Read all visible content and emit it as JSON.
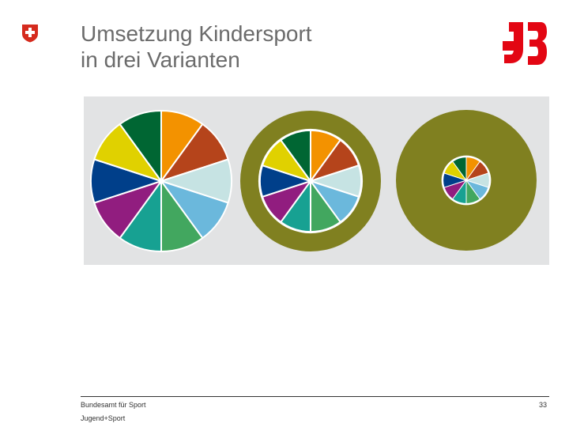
{
  "slide": {
    "title_lines": [
      "Umsetzung Kindersport",
      "in drei Varianten"
    ],
    "footer": {
      "organization": "Bundesamt für Sport",
      "program": "Jugend+Sport",
      "page_number": "33"
    }
  },
  "logos": {
    "left": "swiss-federal-coat-of-arms",
    "right": "js-jugend-sport-logo"
  },
  "graphic": {
    "background_color": "#e2e3e4",
    "ring_color": "#808020",
    "segment_colors": [
      "#f39200",
      "#b5441b",
      "#c6e3e3",
      "#6bb8dc",
      "#42a75f",
      "#17a192",
      "#911d7f",
      "#003f8a",
      "#e0d100",
      "#006633"
    ],
    "variants": [
      {
        "name": "variant-1",
        "inner_fraction": 1.0
      },
      {
        "name": "variant-2",
        "inner_fraction": 0.72
      },
      {
        "name": "variant-3",
        "inner_fraction": 0.33
      }
    ]
  }
}
